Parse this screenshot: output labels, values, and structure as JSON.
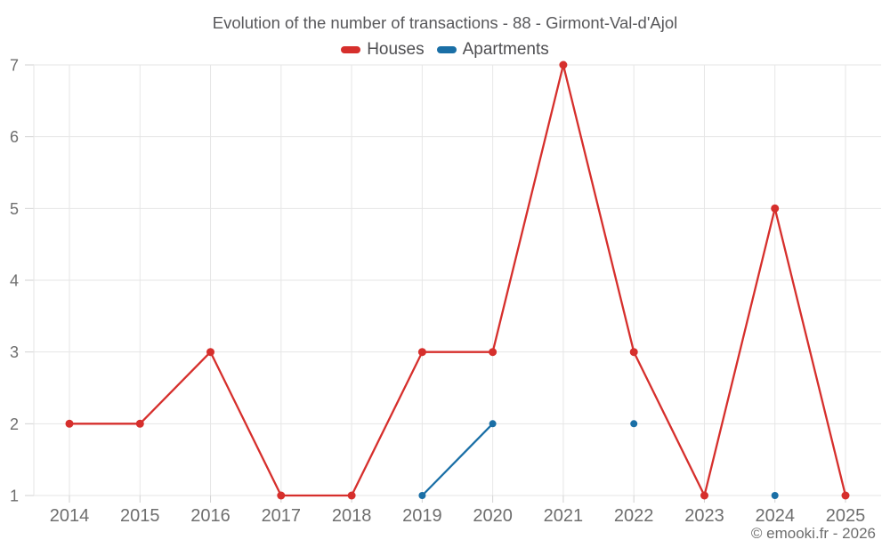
{
  "footer": {
    "text": "© emooki.fr - 2026"
  },
  "chart_data": {
    "type": "line",
    "title": "Evolution of the number of transactions - 88 - Girmont-Val-d'Ajol",
    "x": [
      2014,
      2015,
      2016,
      2017,
      2018,
      2019,
      2020,
      2021,
      2022,
      2023,
      2024,
      2025
    ],
    "series": [
      {
        "name": "Houses",
        "color": "#d62f2c",
        "marker_radius": 4.5,
        "values": [
          2,
          2,
          3,
          1,
          1,
          3,
          3,
          7,
          3,
          1,
          5,
          1
        ]
      },
      {
        "name": "Apartments",
        "color": "#1a6fa6",
        "marker_radius": 4,
        "values": [
          null,
          null,
          null,
          null,
          null,
          1,
          2,
          null,
          2,
          null,
          1,
          null
        ]
      }
    ],
    "xlabel": "",
    "ylabel": "",
    "ylim": [
      1,
      7
    ],
    "yticks": [
      1,
      2,
      3,
      4,
      5,
      6,
      7
    ],
    "grid": true,
    "grid_color": "#e6e6e6",
    "tick_color": "#d2d2d2",
    "axis_label_color": "#6e6e6e",
    "legend_position": "top",
    "gap_policy": "isolated-points-as-dots"
  }
}
